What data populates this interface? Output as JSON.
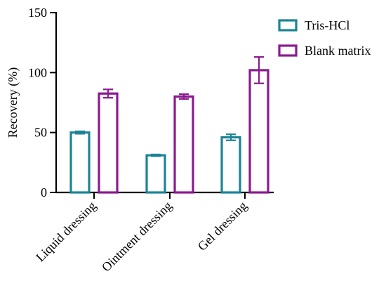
{
  "colors": {
    "tris_hcl": "#1b8495",
    "blank_matrix": "#8b1a8f",
    "axis": "#000000"
  },
  "chart_data": {
    "type": "bar",
    "title": "",
    "xlabel": "",
    "ylabel": "Recovery (%)",
    "ylim": [
      0,
      150
    ],
    "yticks": [
      0,
      50,
      100,
      150
    ],
    "categories": [
      "Liquid dressing",
      "Ointment dressing",
      "Gel dressing"
    ],
    "series": [
      {
        "name": "Tris-HCl",
        "color": "#1b8495",
        "values": [
          50,
          31,
          46
        ],
        "errors": [
          1,
          0.7,
          2.5
        ]
      },
      {
        "name": "Blank matrix",
        "color": "#8b1a8f",
        "values": [
          82.5,
          80,
          102
        ],
        "errors": [
          3.5,
          2,
          11
        ]
      }
    ],
    "grid": false,
    "legend_position": "top-right"
  }
}
